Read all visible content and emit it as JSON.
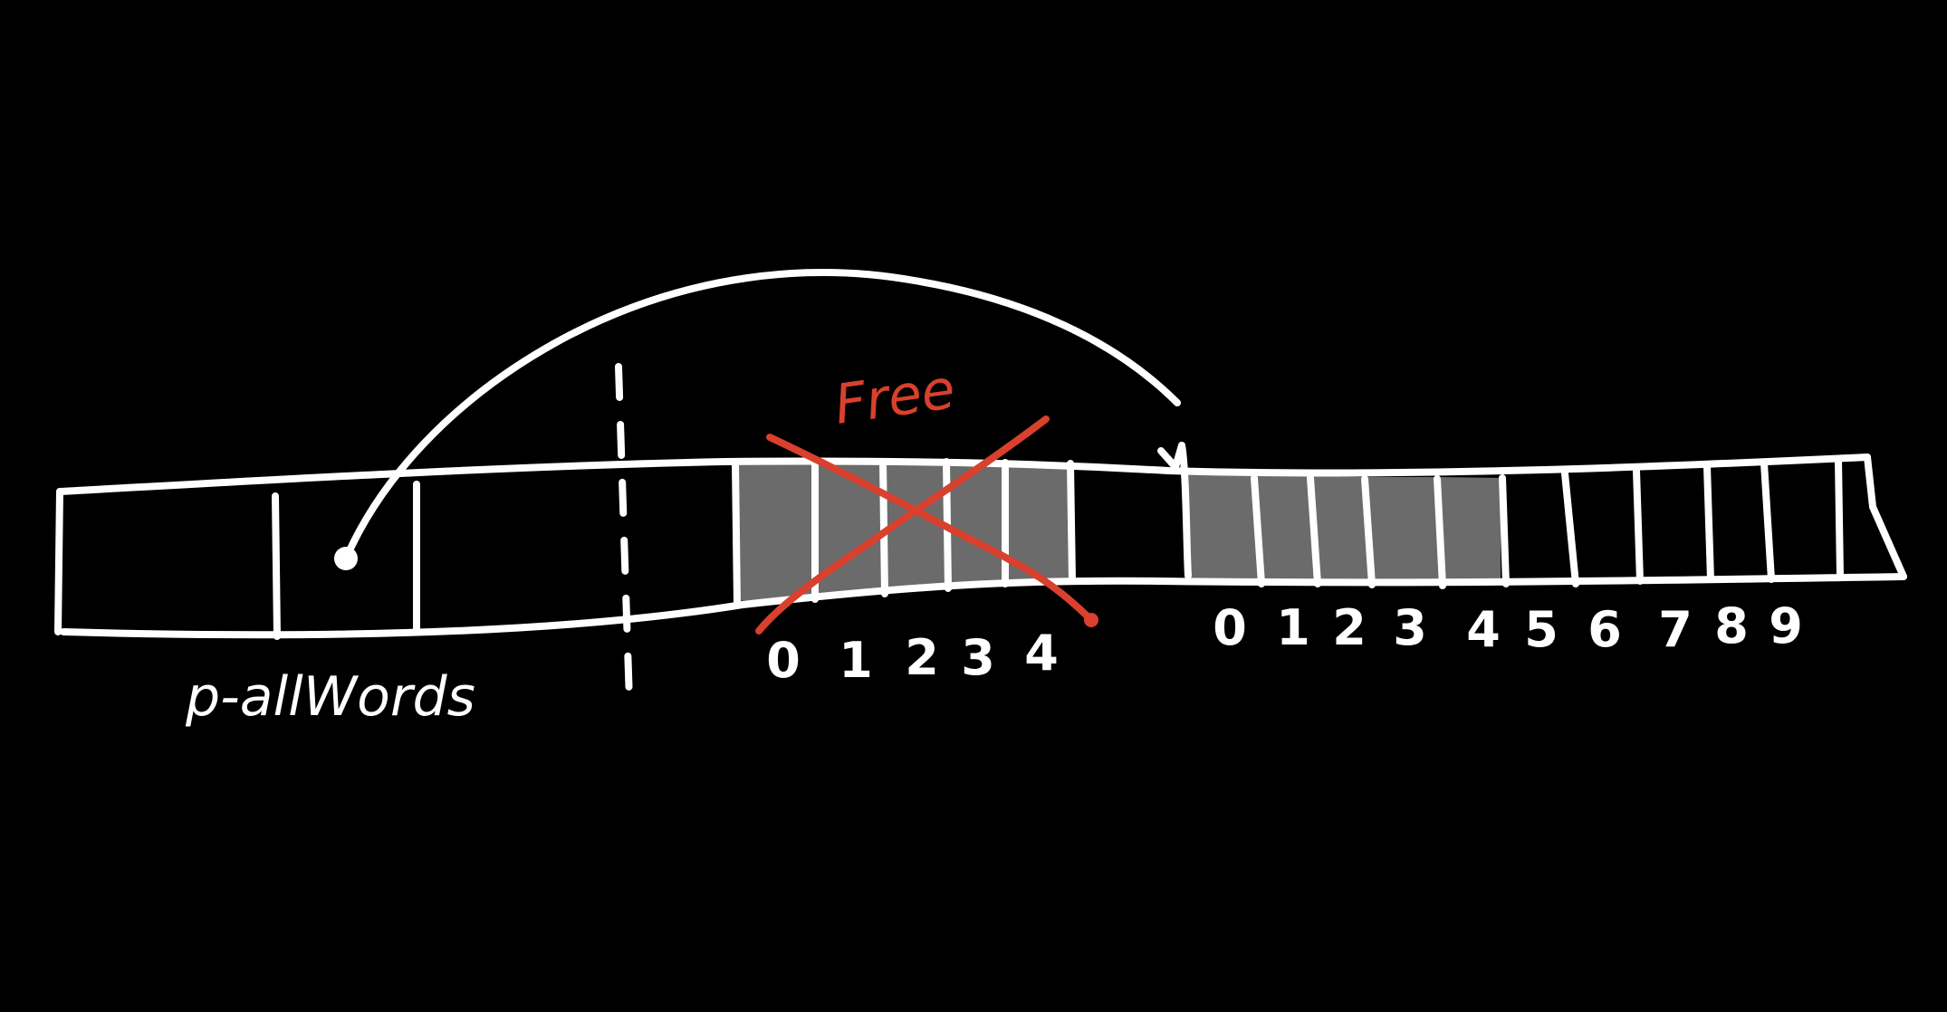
{
  "colors": {
    "background": "#000000",
    "ink": "#ffffff",
    "filled_cell": "#6b6b6b",
    "freed": "#d9402e"
  },
  "labels": {
    "pointer_name": "p-allWords",
    "free_note": "Free"
  },
  "old_block": {
    "indices": [
      "0",
      "1",
      "2",
      "3",
      "4"
    ],
    "filled_count": 5,
    "status": "freed"
  },
  "new_block": {
    "indices": [
      "0",
      "1",
      "2",
      "3",
      "4",
      "5",
      "6",
      "7",
      "8",
      "9"
    ],
    "filled_count": 5
  }
}
